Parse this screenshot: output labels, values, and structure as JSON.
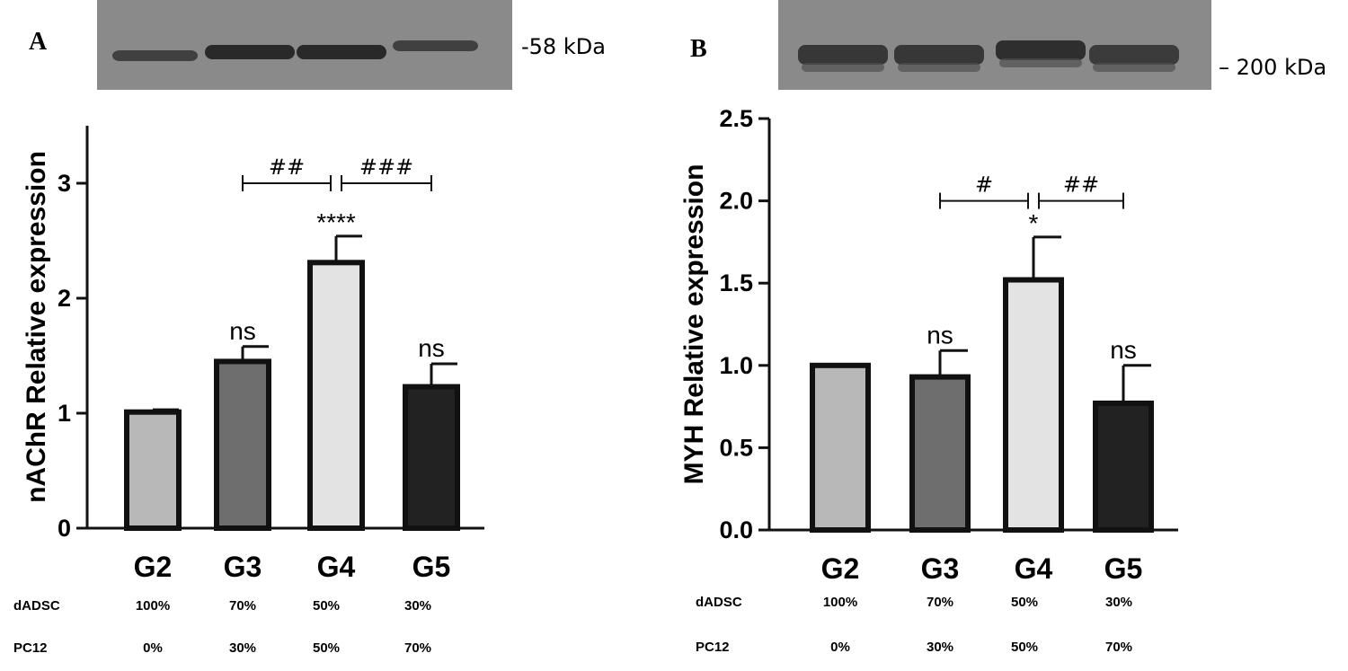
{
  "chart_data": [
    {
      "type": "bar",
      "panel": "A",
      "blot_label": "-58 kDa",
      "ylabel": "nAChR Relative expression",
      "categories": [
        "G2",
        "G3",
        "G4",
        "G5"
      ],
      "values": [
        1.01,
        1.45,
        2.31,
        1.23
      ],
      "errors": [
        0.02,
        0.13,
        0.23,
        0.2
      ],
      "colors": [
        "#b8b8b8",
        "#6e6e6e",
        "#e3e3e3",
        "#222222"
      ],
      "ylim": [
        0,
        3.5
      ],
      "yticks": [
        "0",
        "1",
        "2",
        "3"
      ],
      "ytick_values": [
        0,
        1,
        2,
        3
      ],
      "annotations": [
        "",
        "ns",
        "****",
        "ns"
      ],
      "comparisons": [
        {
          "from": "G3",
          "to": "G4",
          "label": "##"
        },
        {
          "from": "G4",
          "to": "G5",
          "label": "###"
        }
      ],
      "table": {
        "rows": [
          {
            "name": "dADSC",
            "values": [
              "100%",
              "70%",
              "50%",
              "30%"
            ]
          },
          {
            "name": "PC12",
            "values": [
              "0%",
              "30%",
              "50%",
              "70%"
            ]
          }
        ]
      }
    },
    {
      "type": "bar",
      "panel": "B",
      "blot_label": "– 200 kDa",
      "ylabel": "MYH Relative expression",
      "categories": [
        "G2",
        "G3",
        "G4",
        "G5"
      ],
      "values": [
        1.0,
        0.93,
        1.52,
        0.77
      ],
      "errors": [
        0.0,
        0.16,
        0.26,
        0.23
      ],
      "colors": [
        "#b8b8b8",
        "#6e6e6e",
        "#e3e3e3",
        "#222222"
      ],
      "ylim": [
        0,
        2.5
      ],
      "yticks": [
        "0.0",
        "0.5",
        "1.0",
        "1.5",
        "2.0",
        "2.5"
      ],
      "ytick_values": [
        0,
        0.5,
        1.0,
        1.5,
        2.0,
        2.5
      ],
      "annotations": [
        "",
        "ns",
        "*",
        "ns"
      ],
      "comparisons": [
        {
          "from": "G3",
          "to": "G4",
          "label": "#"
        },
        {
          "from": "G4",
          "to": "G5",
          "label": "##"
        }
      ],
      "table": {
        "rows": [
          {
            "name": "dADSC",
            "values": [
              "100%",
              "70%",
              "50%",
              "30%"
            ]
          },
          {
            "name": "PC12",
            "values": [
              "0%",
              "30%",
              "50%",
              "70%"
            ]
          }
        ]
      }
    }
  ]
}
